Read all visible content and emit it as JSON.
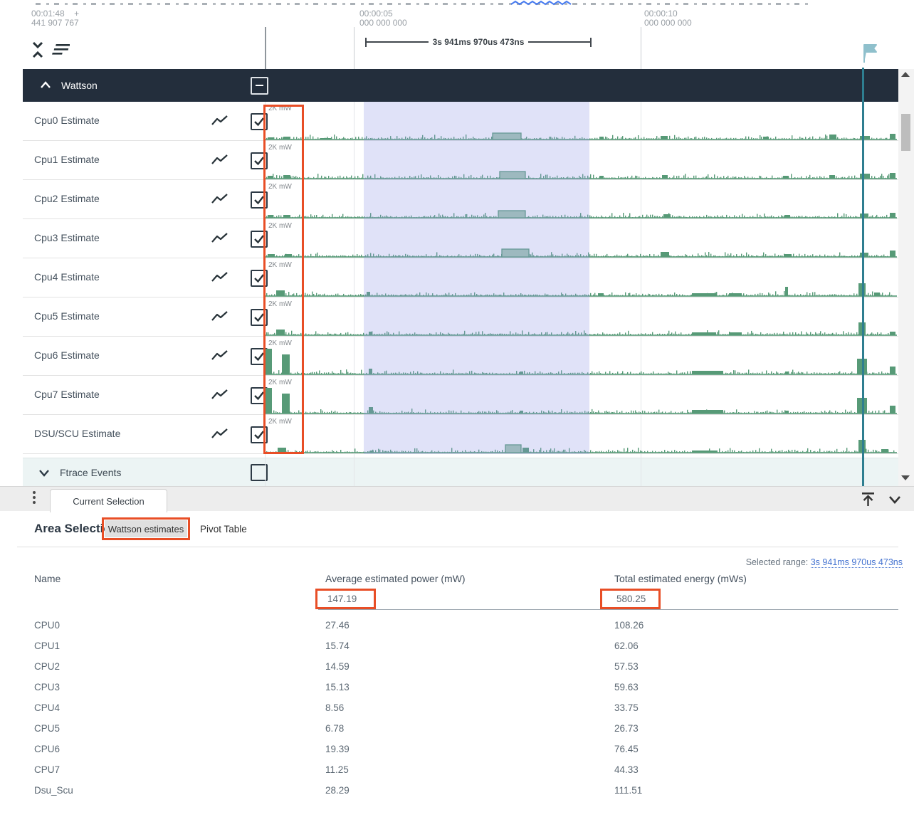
{
  "colors": {
    "accent_orange": "#e84e26",
    "trace_green": "#579a77",
    "trace_green_fill": "#a2c7b0",
    "selection_overlay": "#8f98e6",
    "teal_marker": "#2e7e90",
    "header_dark": "#232e3c",
    "link_blue": "#4372d0",
    "ftrace_bg": "#ecf4f4"
  },
  "icons": {
    "collapse": "unfold-less chevrons",
    "menu": "three-bars",
    "flag": "flag",
    "group_chevron": "chevron-up",
    "group_checkbox": "indeterminate",
    "track_type": "show-chart zigzag",
    "track_checkbox": "checked",
    "ftrace_chevron": "chevron-down",
    "kebab": "vertical-dots",
    "scroll_top": "arrow-up-to-line",
    "panel_chevron": "chevron-down"
  },
  "ruler": {
    "left_ts_1": "00:01:48",
    "left_plus": "+",
    "left_ts_2": "441 907 767",
    "mid_ts_1": "00:00:05",
    "mid_ts_2": "000 000 000",
    "right_ts_1": "00:00:10",
    "right_ts_2": "000 000 000",
    "range_label": "3s 941ms 970us 473ns"
  },
  "tracks_panel": {
    "group": {
      "label": "Wattson"
    },
    "unit_label": "2K mW",
    "tracks": [
      {
        "name": "Cpu0 Estimate",
        "checked": true,
        "waveform": [
          [
            4,
            8,
            3
          ],
          [
            26,
            10,
            4
          ],
          [
            78,
            16,
            2
          ],
          [
            320,
            40,
            9,
            1
          ],
          [
            470,
            6,
            4
          ],
          [
            556,
            10,
            5
          ],
          [
            700,
            8,
            4
          ],
          [
            793,
            10,
            7
          ],
          [
            836,
            14,
            5
          ],
          [
            878,
            8,
            8
          ]
        ]
      },
      {
        "name": "Cpu1 Estimate",
        "checked": true,
        "waveform": [
          [
            4,
            8,
            4
          ],
          [
            26,
            10,
            5
          ],
          [
            330,
            36,
            10,
            1
          ],
          [
            470,
            6,
            4
          ],
          [
            558,
            8,
            5
          ],
          [
            728,
            8,
            4
          ],
          [
            793,
            8,
            5
          ],
          [
            836,
            14,
            7
          ],
          [
            878,
            8,
            8
          ]
        ]
      },
      {
        "name": "Cpu2 Estimate",
        "checked": true,
        "waveform": [
          [
            4,
            8,
            4
          ],
          [
            26,
            10,
            4
          ],
          [
            328,
            38,
            10,
            1
          ],
          [
            560,
            10,
            5
          ],
          [
            730,
            8,
            4
          ],
          [
            836,
            12,
            6
          ],
          [
            878,
            8,
            7
          ]
        ]
      },
      {
        "name": "Cpu3 Estimate",
        "checked": true,
        "waveform": [
          [
            4,
            10,
            4
          ],
          [
            28,
            10,
            4
          ],
          [
            333,
            38,
            11,
            1
          ],
          [
            556,
            12,
            7
          ],
          [
            730,
            10,
            4
          ],
          [
            836,
            12,
            6
          ],
          [
            878,
            8,
            9
          ]
        ]
      },
      {
        "name": "Cpu4 Estimate",
        "checked": true,
        "waveform": [
          [
            16,
            12,
            8
          ],
          [
            143,
            5,
            6
          ],
          [
            468,
            8,
            4
          ],
          [
            600,
            34,
            4
          ],
          [
            652,
            18,
            4
          ],
          [
            731,
            4,
            13
          ],
          [
            834,
            10,
            18
          ],
          [
            856,
            8,
            5
          ]
        ]
      },
      {
        "name": "Cpu5 Estimate",
        "checked": true,
        "waveform": [
          [
            16,
            12,
            8
          ],
          [
            146,
            5,
            5
          ],
          [
            600,
            34,
            4
          ],
          [
            652,
            18,
            4
          ],
          [
            834,
            10,
            18
          ],
          [
            878,
            8,
            5
          ]
        ]
      },
      {
        "name": "Cpu6 Estimate",
        "checked": true,
        "waveform": [
          [
            1,
            9,
            36
          ],
          [
            24,
            11,
            28
          ],
          [
            146,
            5,
            8
          ],
          [
            358,
            5,
            4
          ],
          [
            600,
            44,
            5
          ],
          [
            731,
            5,
            4
          ],
          [
            832,
            14,
            22
          ],
          [
            878,
            8,
            11
          ]
        ]
      },
      {
        "name": "Cpu7 Estimate",
        "checked": true,
        "waveform": [
          [
            1,
            9,
            36
          ],
          [
            24,
            11,
            28
          ],
          [
            146,
            6,
            9
          ],
          [
            358,
            5,
            4
          ],
          [
            600,
            44,
            5
          ],
          [
            731,
            5,
            4
          ],
          [
            832,
            14,
            22
          ],
          [
            878,
            8,
            11
          ]
        ]
      },
      {
        "name": "DSU/SCU Estimate",
        "checked": true,
        "waveform": [
          [
            18,
            12,
            7
          ],
          [
            148,
            5,
            3
          ],
          [
            338,
            22,
            11,
            1
          ],
          [
            362,
            9,
            7
          ],
          [
            600,
            36,
            3
          ],
          [
            834,
            10,
            18
          ],
          [
            866,
            10,
            5
          ]
        ]
      }
    ],
    "ftrace": {
      "label": "Ftrace Events",
      "checked": false
    }
  },
  "bottom_bar": {
    "tab_label": "Current Selection"
  },
  "details": {
    "heading": "Area Selection",
    "tabs": [
      {
        "label": "Wattson estimates"
      },
      {
        "label": "Pivot Table"
      }
    ],
    "selected_range_label": "Selected range:",
    "selected_range_value": "3s 941ms 970us 473ns",
    "table": {
      "columns": [
        "Name",
        "Average estimated power (mW)",
        "Total estimated energy (mWs)"
      ],
      "total": {
        "avg": "147.19",
        "total": "580.25"
      },
      "rows": [
        [
          "CPU0",
          "27.46",
          "108.26"
        ],
        [
          "CPU1",
          "15.74",
          "62.06"
        ],
        [
          "CPU2",
          "14.59",
          "57.53"
        ],
        [
          "CPU3",
          "15.13",
          "59.63"
        ],
        [
          "CPU4",
          "8.56",
          "33.75"
        ],
        [
          "CPU5",
          "6.78",
          "26.73"
        ],
        [
          "CPU6",
          "19.39",
          "76.45"
        ],
        [
          "CPU7",
          "11.25",
          "44.33"
        ],
        [
          "Dsu_Scu",
          "28.29",
          "111.51"
        ]
      ]
    }
  }
}
